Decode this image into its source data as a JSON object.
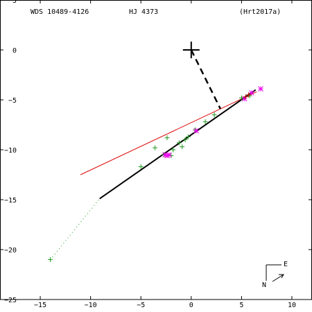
{
  "chart_data": {
    "type": "scatter",
    "header": {
      "left": "WDS 10489-4126",
      "center": "HJ 4373",
      "right": "(Hrt2017a)"
    },
    "xlim": [
      -19,
      12
    ],
    "ylim": [
      -25,
      5
    ],
    "x_ticks": [
      -15,
      -10,
      -5,
      0,
      5,
      10
    ],
    "y_ticks": [
      5,
      0,
      -5,
      -10,
      -15,
      -20,
      -25
    ],
    "primary": [
      0,
      0
    ],
    "orbit_line": [
      [
        -9.1,
        -14.9
      ],
      [
        6.4,
        -4.0
      ]
    ],
    "periastron_line": [
      [
        0,
        0
      ],
      [
        2.9,
        -5.9
      ]
    ],
    "red_line": [
      [
        -11,
        -12.5
      ],
      [
        6.5,
        -4.2
      ]
    ],
    "dotted_line": [
      [
        -14,
        -21
      ],
      [
        -9.1,
        -14.9
      ]
    ],
    "green_points": [
      [
        -14.0,
        -21.0
      ],
      [
        -5.0,
        -11.7
      ],
      [
        -3.6,
        -9.8
      ],
      [
        -2.4,
        -8.8
      ],
      [
        -2.7,
        -10.5
      ],
      [
        -2.0,
        -10.6
      ],
      [
        -1.8,
        -10.0
      ],
      [
        -1.2,
        -9.3
      ],
      [
        -0.9,
        -9.7
      ],
      [
        -0.6,
        -9.0
      ],
      [
        -0.3,
        -8.7
      ],
      [
        0.4,
        -8.0
      ],
      [
        1.4,
        -7.2
      ],
      [
        2.3,
        -6.5
      ],
      [
        5.0,
        -4.8
      ],
      [
        5.8,
        -4.6
      ]
    ],
    "magenta_points": [
      [
        -2.6,
        -10.5
      ],
      [
        -2.4,
        -10.6
      ],
      [
        -2.2,
        -10.5
      ],
      [
        0.5,
        -8.1
      ],
      [
        5.3,
        -4.9
      ],
      [
        6.0,
        -4.3
      ],
      [
        6.9,
        -3.9
      ]
    ],
    "red_points": [
      [
        5.4,
        -4.7
      ],
      [
        5.7,
        -4.5
      ]
    ],
    "compass": {
      "east": "E",
      "north": "N"
    }
  }
}
